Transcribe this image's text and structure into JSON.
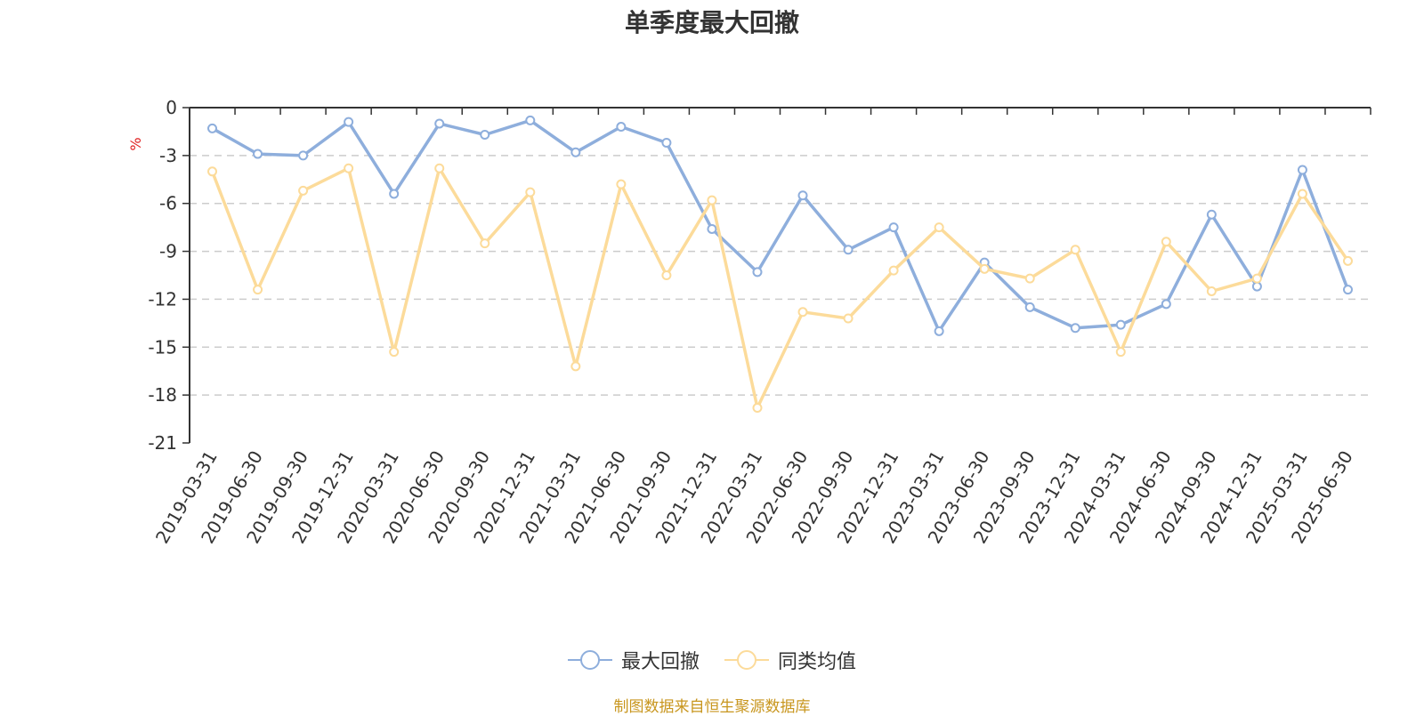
{
  "chart_data": {
    "type": "line",
    "title": "单季度最大回撤",
    "ylabel": "%",
    "ylim": [
      -21,
      0
    ],
    "yticks": [
      0,
      -3,
      -6,
      -9,
      -12,
      -15,
      -18,
      -21
    ],
    "categories": [
      "2019-03-31",
      "2019-06-30",
      "2019-09-30",
      "2019-12-31",
      "2020-03-31",
      "2020-06-30",
      "2020-09-30",
      "2020-12-31",
      "2021-03-31",
      "2021-06-30",
      "2021-09-30",
      "2021-12-31",
      "2022-03-31",
      "2022-06-30",
      "2022-09-30",
      "2022-12-31",
      "2023-03-31",
      "2023-06-30",
      "2023-09-30",
      "2023-12-31",
      "2024-03-31",
      "2024-06-30",
      "2024-09-30",
      "2024-12-31",
      "2025-03-31",
      "2025-06-30"
    ],
    "series": [
      {
        "name": "最大回撤",
        "color": "#8eaedc",
        "values": [
          -1.3,
          -2.9,
          -3.0,
          -0.9,
          -5.4,
          -1.0,
          -1.7,
          -0.8,
          -2.8,
          -1.2,
          -2.2,
          -7.6,
          -10.3,
          -5.5,
          -8.9,
          -7.5,
          -14.0,
          -9.7,
          -12.5,
          -13.8,
          -13.6,
          -12.3,
          -6.7,
          -11.2,
          -3.9,
          -11.4
        ]
      },
      {
        "name": "同类均值",
        "color": "#fcdb9a",
        "values": [
          -4.0,
          -11.4,
          -5.2,
          -3.8,
          -15.3,
          -3.8,
          -8.5,
          -5.3,
          -16.2,
          -4.8,
          -10.5,
          -5.8,
          -18.8,
          -12.8,
          -13.2,
          -10.2,
          -7.5,
          -10.1,
          -10.7,
          -8.9,
          -15.3,
          -8.4,
          -11.5,
          -10.7,
          -5.4,
          -9.6
        ]
      }
    ]
  },
  "legend": {
    "items": [
      "最大回撤",
      "同类均值"
    ]
  },
  "source": "制图数据来自恒生聚源数据库"
}
